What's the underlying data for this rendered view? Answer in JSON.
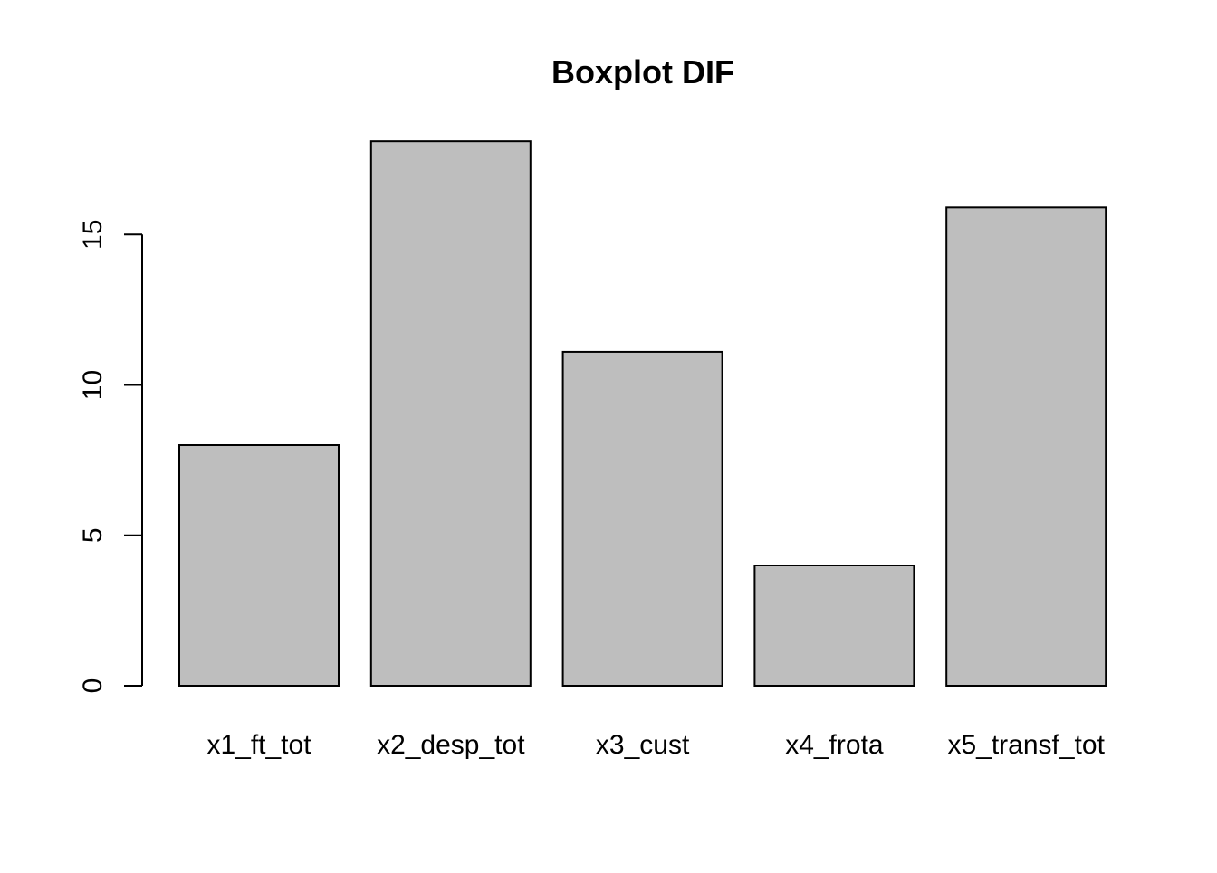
{
  "chart_data": {
    "type": "bar",
    "title": "Boxplot DIF",
    "xlabel": "",
    "ylabel": "",
    "categories": [
      "x1_ft_tot",
      "x2_desp_tot",
      "x3_cust",
      "x4_frota",
      "x5_transf_tot"
    ],
    "values": [
      8,
      18.1,
      11.1,
      4,
      15.9
    ],
    "ylim": [
      0,
      18.1
    ],
    "yticks": [
      0,
      5,
      10,
      15
    ],
    "ytick_labels": [
      "0",
      "5",
      "10",
      "15"
    ],
    "grid": false,
    "legend": "none",
    "bar_color": "#bebebe",
    "edge_color": "#000000"
  }
}
